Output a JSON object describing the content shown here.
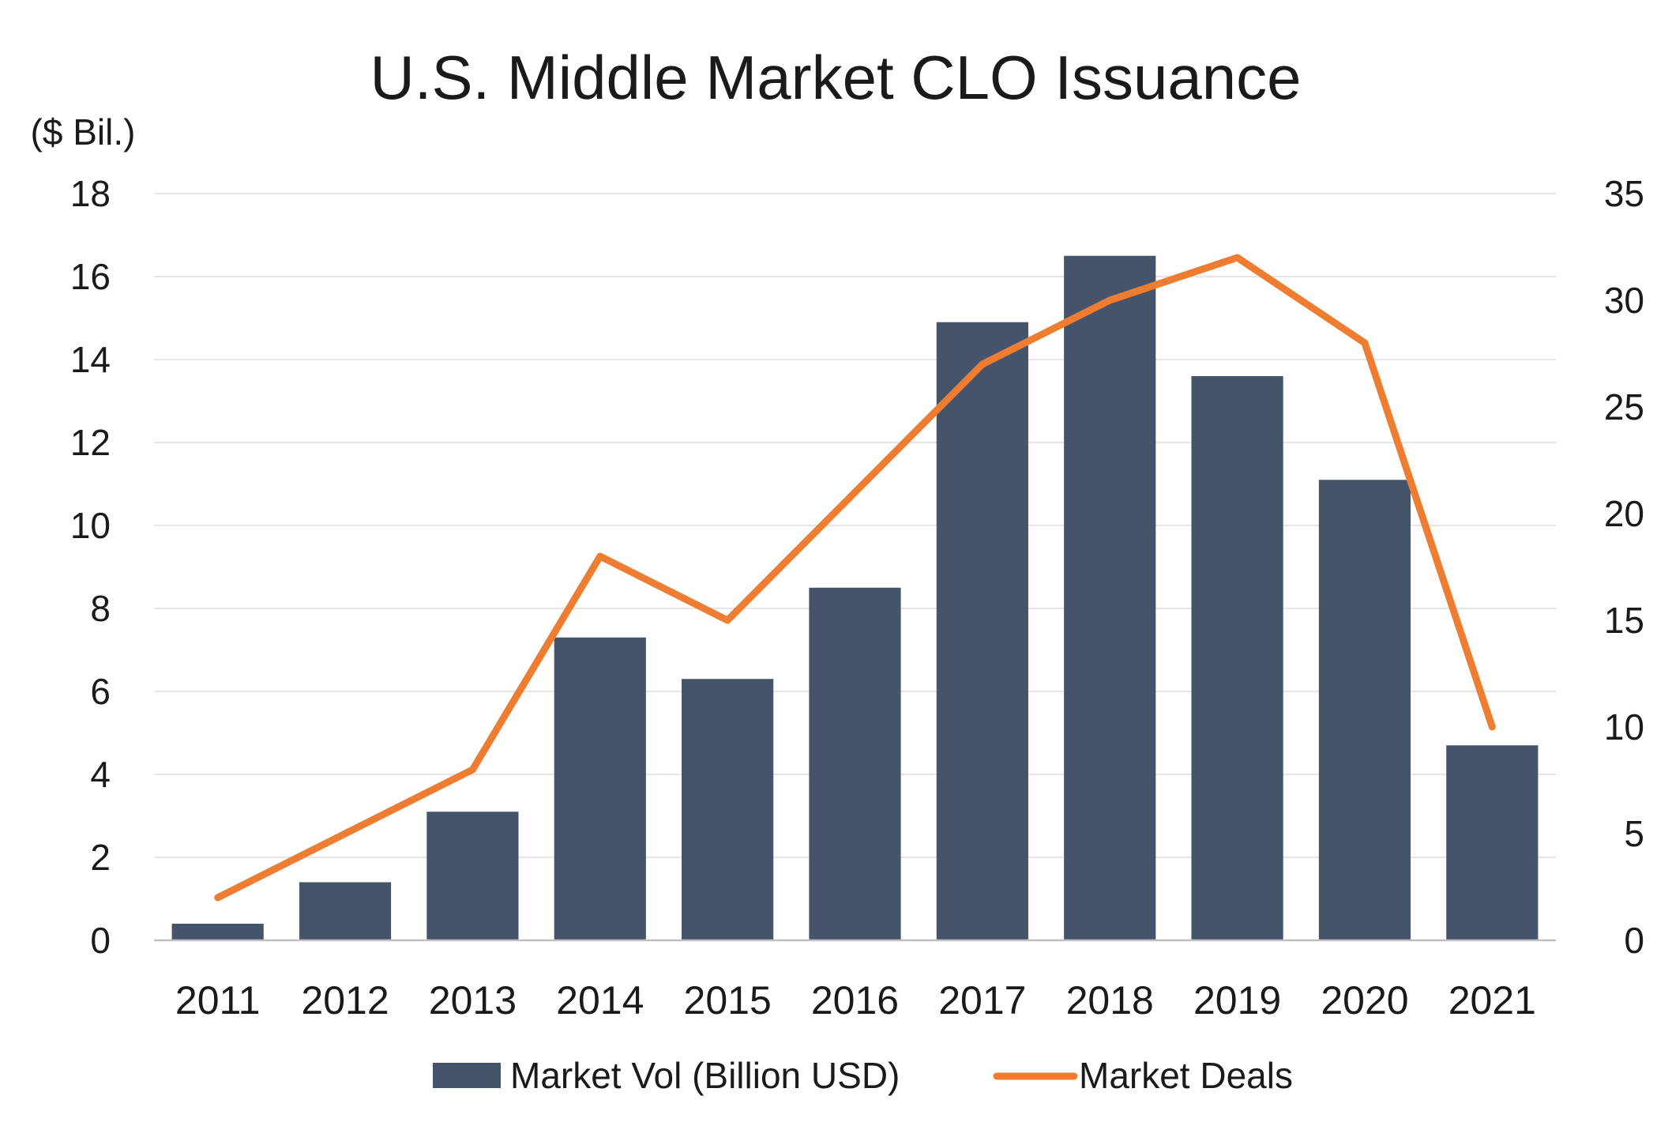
{
  "chart_data": {
    "type": "bar",
    "title": "U.S. Middle Market CLO Issuance",
    "y_unit_label": "($ Bil.)",
    "categories": [
      "2011",
      "2012",
      "2013",
      "2014",
      "2015",
      "2016",
      "2017",
      "2018",
      "2019",
      "2020",
      "2021"
    ],
    "series": [
      {
        "name": "Market Vol (Billion USD)",
        "type": "bar",
        "axis": "left",
        "color": "#45546b",
        "values": [
          0.4,
          1.4,
          3.1,
          7.3,
          6.3,
          8.5,
          14.9,
          16.5,
          13.6,
          11.1,
          4.7
        ]
      },
      {
        "name": "Market Deals",
        "type": "line",
        "axis": "right",
        "color": "#ef7d31",
        "values": [
          2,
          5,
          8,
          18,
          15,
          21,
          27,
          30,
          32,
          28,
          10
        ]
      }
    ],
    "y_left": {
      "min": 0,
      "max": 18,
      "ticks": [
        "0",
        "2",
        "4",
        "6",
        "8",
        "10",
        "12",
        "14",
        "16",
        "18"
      ]
    },
    "y_right": {
      "min": 0,
      "max": 35,
      "ticks": [
        "0",
        "5",
        "10",
        "15",
        "20",
        "25",
        "30",
        "35"
      ]
    },
    "grid": true,
    "legend_position": "bottom"
  }
}
